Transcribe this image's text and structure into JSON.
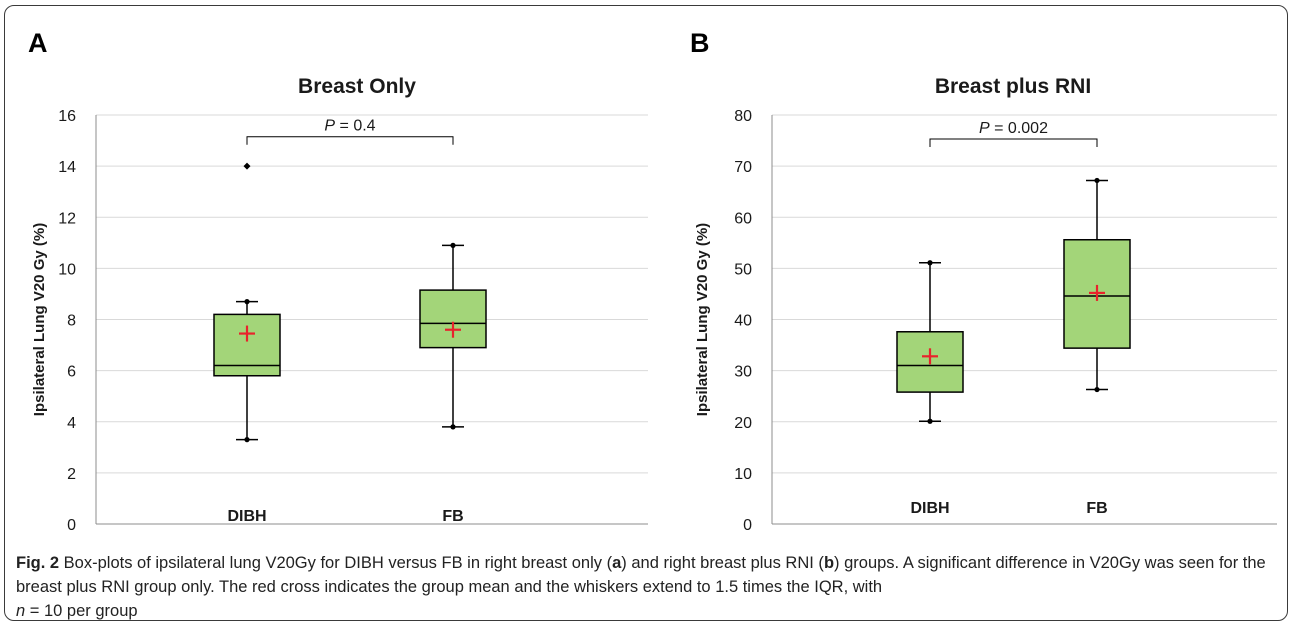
{
  "chart_data": [
    {
      "type": "box",
      "panel_letter": "A",
      "title": "Breast Only",
      "ylabel": "Ipsilateral Lung V20 Gy (%)",
      "xlabel": "",
      "ylim": [
        0,
        16
      ],
      "yticks": [
        0,
        2,
        4,
        6,
        8,
        10,
        12,
        14,
        16
      ],
      "grid": true,
      "categories": [
        "DIBH",
        "FB"
      ],
      "boxes": [
        {
          "name": "DIBH",
          "whisker_low": 3.3,
          "q1": 5.8,
          "median": 6.2,
          "q3": 8.2,
          "whisker_high": 8.7,
          "mean": 7.45,
          "outliers": [
            14.0
          ]
        },
        {
          "name": "FB",
          "whisker_low": 3.8,
          "q1": 6.9,
          "median": 7.85,
          "q3": 9.15,
          "whisker_high": 10.9,
          "mean": 7.6,
          "outliers": []
        }
      ],
      "annotation": {
        "p_symbol": "P",
        "p_text": " = 0.4",
        "bracket_y": 15.15
      }
    },
    {
      "type": "box",
      "panel_letter": "B",
      "title": "Breast plus RNI",
      "ylabel": "Ipsilateral Lung V20 Gy (%)",
      "xlabel": "",
      "ylim": [
        0,
        80
      ],
      "yticks": [
        0,
        10,
        20,
        30,
        40,
        50,
        60,
        70,
        80
      ],
      "grid": true,
      "categories": [
        "DIBH",
        "FB"
      ],
      "boxes": [
        {
          "name": "DIBH",
          "whisker_low": 20.1,
          "q1": 25.8,
          "median": 31.0,
          "q3": 37.6,
          "whisker_high": 51.1,
          "mean": 32.8,
          "outliers": []
        },
        {
          "name": "FB",
          "whisker_low": 26.3,
          "q1": 34.4,
          "median": 44.6,
          "q3": 55.6,
          "whisker_high": 67.2,
          "mean": 45.2,
          "outliers": []
        }
      ],
      "annotation": {
        "p_symbol": "P",
        "p_text": " = 0.002",
        "bracket_y": 75.3
      }
    }
  ],
  "colors": {
    "box_fill": "#a3d579",
    "mean_marker": "#e8232c",
    "grid": "#d9d9d9",
    "axis": "#8c8c8c",
    "text": "#1a1a1a"
  },
  "caption": {
    "label": "Fig. 2",
    "part1": " Box-plots of ipsilateral lung V20Gy for DIBH versus FB in right breast only (",
    "panel_a": "a",
    "part2": ") and right breast plus RNI (",
    "panel_b": "b",
    "part3": ") groups. A significant difference in V20Gy was seen for the breast plus RNI group only. The red cross indicates the group mean and the whiskers extend to 1.5 times the IQR, with",
    "n_symbol": "n",
    "part4": " = 10 per group"
  }
}
